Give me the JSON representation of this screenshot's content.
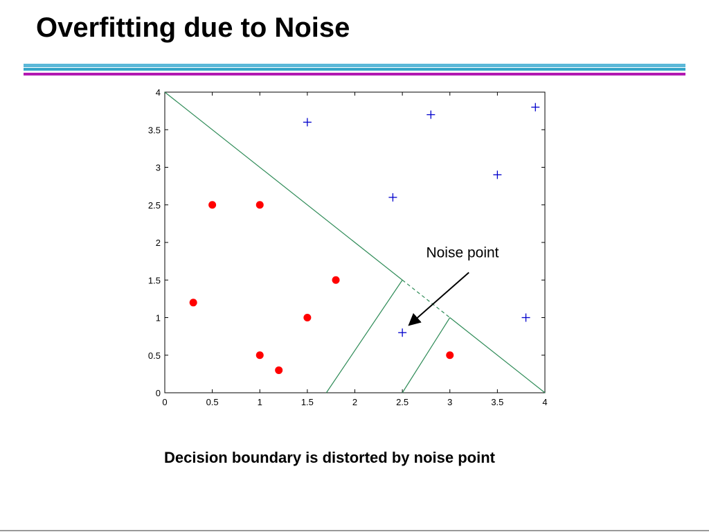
{
  "slide": {
    "title": "Overfitting due to Noise",
    "caption": "Decision boundary is distorted by noise point",
    "colors": {
      "rule_top": "#5bb8d8",
      "rule_mid": "#35a5c8",
      "rule_bottom": "#b219b2"
    }
  },
  "chart_data": {
    "type": "scatter",
    "title": "",
    "xlabel": "",
    "ylabel": "",
    "xlim": [
      0,
      4
    ],
    "ylim": [
      0,
      4
    ],
    "x_ticks": [
      "0",
      "0.5",
      "1",
      "1.5",
      "2",
      "2.5",
      "3",
      "3.5",
      "4"
    ],
    "y_ticks": [
      "0",
      "0.5",
      "1",
      "1.5",
      "2",
      "2.5",
      "3",
      "3.5",
      "4"
    ],
    "grid": false,
    "series": [
      {
        "marker": "dot",
        "color": "#ff0000",
        "points": [
          [
            0.5,
            2.5
          ],
          [
            1.0,
            2.5
          ],
          [
            1.8,
            1.5
          ],
          [
            0.3,
            1.2
          ],
          [
            1.5,
            1.0
          ],
          [
            1.0,
            0.5
          ],
          [
            1.2,
            0.3
          ],
          [
            3.0,
            0.5
          ]
        ]
      },
      {
        "marker": "plus",
        "color": "#0000cc",
        "points": [
          [
            1.5,
            3.6
          ],
          [
            2.8,
            3.7
          ],
          [
            3.9,
            3.8
          ],
          [
            3.5,
            2.9
          ],
          [
            2.4,
            2.6
          ],
          [
            3.8,
            1.0
          ],
          [
            2.5,
            0.8
          ]
        ]
      }
    ],
    "boundaries": {
      "color": "#2e8b57",
      "solid": [
        [
          [
            0.0,
            4.0
          ],
          [
            2.5,
            1.5
          ]
        ],
        [
          [
            3.0,
            1.0
          ],
          [
            4.0,
            0.0
          ]
        ],
        [
          [
            1.7,
            0.0
          ],
          [
            2.5,
            1.5
          ]
        ],
        [
          [
            2.5,
            0.0
          ],
          [
            3.0,
            1.0
          ]
        ]
      ],
      "dashed": [
        [
          [
            2.5,
            1.5
          ],
          [
            3.0,
            1.0
          ]
        ]
      ]
    },
    "annotations": [
      {
        "text": "Noise point",
        "text_at": [
          2.75,
          1.8
        ],
        "arrow_from": [
          3.2,
          1.6
        ],
        "arrow_to": [
          2.57,
          0.9
        ]
      }
    ]
  }
}
